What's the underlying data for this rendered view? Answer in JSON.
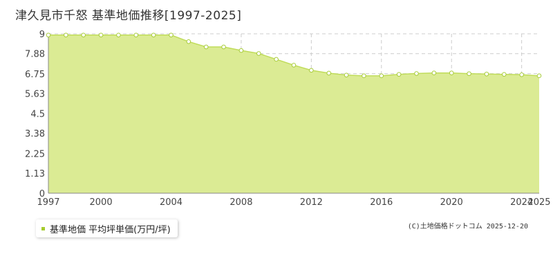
{
  "chart_data": {
    "type": "area",
    "title": "津久見市千怒 基準地価推移[1997-2025]",
    "x": [
      1997,
      1998,
      1999,
      2000,
      2001,
      2002,
      2003,
      2004,
      2005,
      2006,
      2007,
      2008,
      2009,
      2010,
      2011,
      2012,
      2013,
      2014,
      2015,
      2016,
      2017,
      2018,
      2019,
      2020,
      2021,
      2022,
      2023,
      2024,
      2025
    ],
    "series": [
      {
        "name": "基準地価 平均坪単価(万円/坪)",
        "values": [
          8.93,
          8.93,
          8.93,
          8.93,
          8.93,
          8.93,
          8.93,
          8.93,
          8.56,
          8.26,
          8.26,
          8.06,
          7.89,
          7.56,
          7.23,
          6.94,
          6.78,
          6.67,
          6.63,
          6.63,
          6.71,
          6.76,
          6.79,
          6.79,
          6.75,
          6.73,
          6.71,
          6.69,
          6.63
        ]
      }
    ],
    "xlim": [
      1997,
      2025
    ],
    "ylim": [
      0,
      9
    ],
    "xticks": [
      "1997",
      "2000",
      "2004",
      "2008",
      "2012",
      "2016",
      "2020",
      "2024",
      "2025"
    ],
    "yticks": [
      "0",
      "1.13",
      "2.25",
      "3.38",
      "4.5",
      "5.63",
      "6.75",
      "7.88",
      "9"
    ],
    "grid": true,
    "legend": "bottom-left",
    "colors": {
      "fill": "#dbeb94",
      "line": "#c0dc5a",
      "point_stroke": "#a8cc3a",
      "point_fill": "#ffffff",
      "grid": "#cccccc",
      "legend_marker": "#a6cc2e"
    }
  },
  "legend": {
    "label": "基準地価 平均坪単価(万円/坪)"
  },
  "footer": {
    "copyright": "(C)土地価格ドットコム 2025-12-20"
  }
}
